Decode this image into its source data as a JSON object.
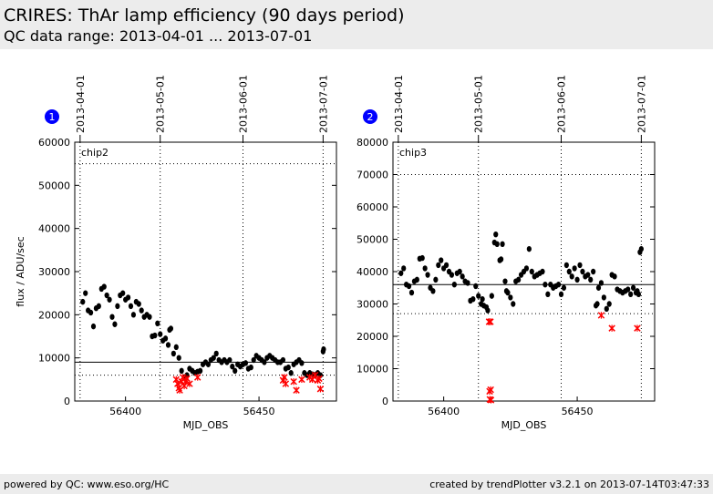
{
  "header": {
    "title": "CRIRES: ThAr lamp efficiency (90 days period)",
    "subtitle": "QC data range: 2013-04-01 ... 2013-07-01"
  },
  "footer": {
    "left": "powered by QC: www.eso.org/HC",
    "right": "created by trendPlotter v3.2.1 on 2013-07-14T03:47:33"
  },
  "colors": {
    "good": "#000000",
    "outlier": "#ff0000",
    "badge": "#0000ff",
    "header_bg": "#ececec"
  },
  "chart_data": [
    {
      "type": "scatter",
      "badge": "1",
      "panel_label": "chip2",
      "xlabel": "MJD_OBS",
      "ylabel": "flux / ADU/sec",
      "xlim": [
        56381,
        56479
      ],
      "ylim": [
        0,
        60000
      ],
      "xticks": [
        56400,
        56450
      ],
      "yticks": [
        0,
        10000,
        20000,
        30000,
        40000,
        50000,
        60000
      ],
      "top_dates": [
        {
          "label": "2013-04-01",
          "mjd": 56383
        },
        {
          "label": "2013-05-01",
          "mjd": 56413
        },
        {
          "label": "2013-06-01",
          "mjd": 56444
        },
        {
          "label": "2013-07-01",
          "mjd": 56474
        }
      ],
      "ref_line": 9000,
      "limit_lines": [
        6000,
        55000
      ],
      "series": [
        {
          "name": "",
          "role": "good",
          "points": [
            [
              56384,
              23000
            ],
            [
              56385,
              25000
            ],
            [
              56386,
              21000
            ],
            [
              56387,
              20500
            ],
            [
              56388,
              17300
            ],
            [
              56389,
              21500
            ],
            [
              56390,
              22000
            ],
            [
              56391,
              26000
            ],
            [
              56392,
              26500
            ],
            [
              56393,
              24500
            ],
            [
              56394,
              23500
            ],
            [
              56395,
              19500
            ],
            [
              56396,
              17800
            ],
            [
              56397,
              22000
            ],
            [
              56398,
              24500
            ],
            [
              56399,
              25000
            ],
            [
              56400,
              23500
            ],
            [
              56401,
              24000
            ],
            [
              56402,
              22000
            ],
            [
              56403,
              20000
            ],
            [
              56404,
              23000
            ],
            [
              56405,
              22500
            ],
            [
              56406,
              21000
            ],
            [
              56407,
              19500
            ],
            [
              56408,
              20000
            ],
            [
              56409,
              19500
            ],
            [
              56410,
              15000
            ],
            [
              56411,
              15200
            ],
            [
              56412,
              18000
            ],
            [
              56413,
              15500
            ],
            [
              56414,
              14000
            ],
            [
              56415,
              14500
            ],
            [
              56416,
              13000
            ],
            [
              56416.5,
              16500
            ],
            [
              56417,
              16800
            ],
            [
              56418,
              11000
            ],
            [
              56419,
              12500
            ],
            [
              56420,
              10000
            ],
            [
              56421,
              7000
            ],
            [
              56422,
              5500
            ],
            [
              56423,
              6000
            ],
            [
              56424,
              7500
            ],
            [
              56425,
              7000
            ],
            [
              56426,
              6500
            ],
            [
              56427,
              6800
            ],
            [
              56428,
              7000
            ],
            [
              56429,
              8500
            ],
            [
              56430,
              9000
            ],
            [
              56431,
              8500
            ],
            [
              56432,
              9500
            ],
            [
              56433,
              10000
            ],
            [
              56434,
              11000
            ],
            [
              56435,
              9500
            ],
            [
              56436,
              9000
            ],
            [
              56437,
              9500
            ],
            [
              56438,
              9000
            ],
            [
              56439,
              9500
            ],
            [
              56440,
              8000
            ],
            [
              56441,
              7000
            ],
            [
              56442,
              8500
            ],
            [
              56443,
              8000
            ],
            [
              56444,
              8500
            ],
            [
              56445,
              8800
            ],
            [
              56446,
              7500
            ],
            [
              56447,
              7800
            ],
            [
              56448,
              9500
            ],
            [
              56449,
              10500
            ],
            [
              56450,
              10000
            ],
            [
              56451,
              9500
            ],
            [
              56452,
              9000
            ],
            [
              56453,
              10000
            ],
            [
              56454,
              10500
            ],
            [
              56455,
              10000
            ],
            [
              56456,
              9500
            ],
            [
              56457,
              9000
            ],
            [
              56458,
              9000
            ],
            [
              56459,
              9500
            ],
            [
              56460,
              7500
            ],
            [
              56461,
              7800
            ],
            [
              56462,
              6500
            ],
            [
              56463,
              8500
            ],
            [
              56464,
              9000
            ],
            [
              56465,
              9500
            ],
            [
              56466,
              8800
            ],
            [
              56467,
              6500
            ],
            [
              56468,
              6000
            ],
            [
              56469,
              6500
            ],
            [
              56470,
              6200
            ],
            [
              56471,
              6000
            ],
            [
              56472,
              6500
            ],
            [
              56473,
              6000
            ],
            [
              56474,
              11500
            ],
            [
              56474.2,
              12000
            ]
          ]
        },
        {
          "name": "",
          "role": "outlier",
          "points": [
            [
              56419,
              5000
            ],
            [
              56419.5,
              4000
            ],
            [
              56420,
              3000
            ],
            [
              56420.3,
              2500
            ],
            [
              56421,
              4500
            ],
            [
              56421.5,
              5500
            ],
            [
              56422,
              3500
            ],
            [
              56422.5,
              4500
            ],
            [
              56423,
              5200
            ],
            [
              56424,
              4000
            ],
            [
              56427,
              5500
            ],
            [
              56459,
              4800
            ],
            [
              56459.5,
              5500
            ],
            [
              56460,
              4000
            ],
            [
              56463,
              4500
            ],
            [
              56464,
              2500
            ],
            [
              56466,
              5000
            ],
            [
              56469,
              5500
            ],
            [
              56470,
              5000
            ],
            [
              56471,
              6000
            ],
            [
              56472,
              4800
            ],
            [
              56472.5,
              5200
            ],
            [
              56473,
              2800
            ]
          ]
        }
      ]
    },
    {
      "type": "scatter",
      "badge": "2",
      "panel_label": "chip3",
      "xlabel": "MJD_OBS",
      "ylabel": "",
      "xlim": [
        56381,
        56479
      ],
      "ylim": [
        0,
        80000
      ],
      "xticks": [
        56400,
        56450
      ],
      "yticks": [
        0,
        10000,
        20000,
        30000,
        40000,
        50000,
        60000,
        70000,
        80000
      ],
      "top_dates": [
        {
          "label": "2013-04-01",
          "mjd": 56383
        },
        {
          "label": "2013-05-01",
          "mjd": 56413
        },
        {
          "label": "2013-06-01",
          "mjd": 56444
        },
        {
          "label": "2013-07-01",
          "mjd": 56474
        }
      ],
      "ref_line": 36000,
      "limit_lines": [
        27000,
        70000
      ],
      "series": [
        {
          "name": "",
          "role": "good",
          "points": [
            [
              56384,
              39500
            ],
            [
              56385,
              41000
            ],
            [
              56386,
              36000
            ],
            [
              56387,
              35500
            ],
            [
              56388,
              33500
            ],
            [
              56389,
              37000
            ],
            [
              56390,
              37500
            ],
            [
              56391,
              44000
            ],
            [
              56392,
              44200
            ],
            [
              56393,
              41000
            ],
            [
              56394,
              39000
            ],
            [
              56395,
              35000
            ],
            [
              56396,
              34000
            ],
            [
              56397,
              37500
            ],
            [
              56398,
              42000
            ],
            [
              56399,
              43500
            ],
            [
              56400,
              41000
            ],
            [
              56401,
              42000
            ],
            [
              56402,
              40000
            ],
            [
              56403,
              39000
            ],
            [
              56404,
              36000
            ],
            [
              56405,
              39500
            ],
            [
              56406,
              40000
            ],
            [
              56407,
              38500
            ],
            [
              56408,
              37000
            ],
            [
              56409,
              36500
            ],
            [
              56410,
              31000
            ],
            [
              56411,
              31500
            ],
            [
              56412,
              35500
            ],
            [
              56413,
              32500
            ],
            [
              56414,
              30000
            ],
            [
              56414.5,
              31500
            ],
            [
              56415,
              29500
            ],
            [
              56416,
              29000
            ],
            [
              56416.5,
              28000
            ],
            [
              56418,
              32500
            ],
            [
              56419,
              49000
            ],
            [
              56419.5,
              51500
            ],
            [
              56420,
              48500
            ],
            [
              56421,
              43500
            ],
            [
              56421.5,
              43800
            ],
            [
              56422,
              48500
            ],
            [
              56423,
              37000
            ],
            [
              56423.5,
              34000
            ],
            [
              56424,
              33500
            ],
            [
              56425,
              32000
            ],
            [
              56426,
              30000
            ],
            [
              56427,
              37000
            ],
            [
              56428,
              37500
            ],
            [
              56429,
              39000
            ],
            [
              56430,
              40000
            ],
            [
              56431,
              41000
            ],
            [
              56432,
              47000
            ],
            [
              56433,
              40000
            ],
            [
              56434,
              38500
            ],
            [
              56435,
              39000
            ],
            [
              56436,
              39500
            ],
            [
              56437,
              40000
            ],
            [
              56438,
              36000
            ],
            [
              56439,
              33000
            ],
            [
              56440,
              36000
            ],
            [
              56441,
              35000
            ],
            [
              56442,
              35500
            ],
            [
              56443,
              36000
            ],
            [
              56444,
              33000
            ],
            [
              56445,
              35000
            ],
            [
              56446,
              42000
            ],
            [
              56447,
              40000
            ],
            [
              56448,
              38500
            ],
            [
              56449,
              41000
            ],
            [
              56450,
              37500
            ],
            [
              56451,
              42000
            ],
            [
              56452,
              40000
            ],
            [
              56453,
              38500
            ],
            [
              56454,
              39000
            ],
            [
              56455,
              37500
            ],
            [
              56456,
              40000
            ],
            [
              56457,
              29500
            ],
            [
              56457.5,
              30000
            ],
            [
              56458,
              35000
            ],
            [
              56459,
              36500
            ],
            [
              56460,
              32000
            ],
            [
              56461,
              28500
            ],
            [
              56462,
              30000
            ],
            [
              56463,
              39000
            ],
            [
              56464,
              38500
            ],
            [
              56465,
              34500
            ],
            [
              56466,
              34000
            ],
            [
              56467,
              33500
            ],
            [
              56468,
              34000
            ],
            [
              56469,
              34500
            ],
            [
              56470,
              33000
            ],
            [
              56471,
              35000
            ],
            [
              56472,
              33500
            ],
            [
              56472.5,
              34000
            ],
            [
              56473,
              33000
            ],
            [
              56473.5,
              46000
            ],
            [
              56474,
              47000
            ]
          ]
        },
        {
          "name": "",
          "role": "outlier",
          "points": [
            [
              56417,
              24500
            ],
            [
              56417.5,
              24500
            ],
            [
              56417.2,
              3000
            ],
            [
              56417.6,
              3500
            ],
            [
              56417.3,
              500
            ],
            [
              56417.7,
              300
            ],
            [
              56459,
              26500
            ],
            [
              56463,
              22500
            ],
            [
              56472.5,
              22500
            ]
          ]
        }
      ]
    }
  ]
}
